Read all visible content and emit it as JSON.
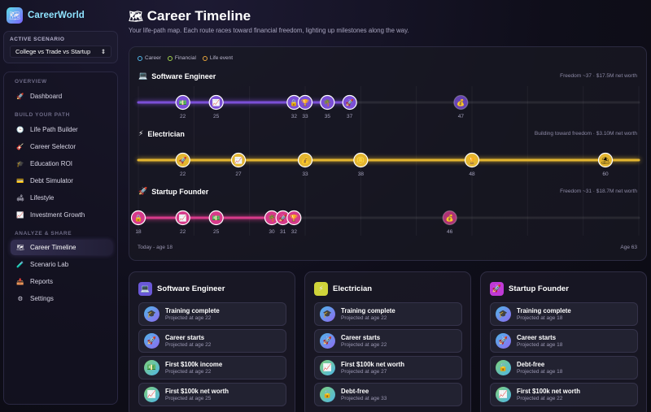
{
  "app": {
    "name": "CareerWorld",
    "logo_icon": "map-icon"
  },
  "scenario": {
    "label": "ACTIVE SCENARIO",
    "selected": "College vs Trade vs Startup"
  },
  "nav": {
    "sections": [
      {
        "label": "OVERVIEW",
        "items": [
          {
            "label": "Dashboard",
            "icon": "rocket-icon",
            "active": false
          }
        ]
      },
      {
        "label": "BUILD YOUR PATH",
        "items": [
          {
            "label": "Life Path Builder",
            "icon": "clock-icon",
            "active": false
          },
          {
            "label": "Career Selector",
            "icon": "guitar-icon",
            "active": false
          },
          {
            "label": "Education ROI",
            "icon": "graduation-cap-icon",
            "active": false
          },
          {
            "label": "Debt Simulator",
            "icon": "credit-card-icon",
            "active": false
          },
          {
            "label": "Lifestyle",
            "icon": "couch-icon",
            "active": false
          },
          {
            "label": "Investment Growth",
            "icon": "chart-icon",
            "active": false
          }
        ]
      },
      {
        "label": "ANALYZE & SHARE",
        "items": [
          {
            "label": "Career Timeline",
            "icon": "map-icon",
            "active": true
          },
          {
            "label": "Scenario Lab",
            "icon": "test-tube-icon",
            "active": false
          },
          {
            "label": "Reports",
            "icon": "inbox-icon",
            "active": false
          },
          {
            "label": "Settings",
            "icon": "gear-icon",
            "active": false
          }
        ]
      }
    ]
  },
  "header": {
    "title": "Career Timeline",
    "subtitle": "Your life-path map. Each route races toward financial freedom, lighting up milestones along the way."
  },
  "legend": [
    {
      "label": "Career",
      "color": "#4fb6e8"
    },
    {
      "label": "Financial",
      "color": "#9fd04a"
    },
    {
      "label": "Life event",
      "color": "#e8a43c"
    }
  ],
  "timeline": {
    "age_min": 18,
    "age_max": 63,
    "start_label": "Today - age 18",
    "end_label": "Age 63",
    "tracks": [
      {
        "title": "Software Engineer",
        "icon": "laptop-icon",
        "status": "Freedom ~37 · $17.5M net worth",
        "color": "#7b4fd6",
        "progress_age": 37,
        "milestones": [
          {
            "age": 22,
            "label": "22",
            "icon": "money-icon"
          },
          {
            "age": 25,
            "label": "25",
            "icon": "chart-up-icon"
          },
          {
            "age": 32,
            "label": "32",
            "icon": "lock-icon"
          },
          {
            "age": 33,
            "label": "33",
            "icon": "trophy-icon"
          },
          {
            "age": 35,
            "label": "35",
            "icon": "tree-icon"
          },
          {
            "age": 37,
            "label": "37",
            "icon": "rocket-icon"
          },
          {
            "age": 47,
            "label": "47",
            "icon": "moneybag-icon"
          }
        ]
      },
      {
        "title": "Electrician",
        "icon": "lightning-icon",
        "status": "Building toward freedom · $3.10M net worth",
        "color": "#e3b530",
        "progress_age": 63,
        "milestones": [
          {
            "age": 22,
            "label": "22",
            "icon": "rocket-icon"
          },
          {
            "age": 27,
            "label": "27",
            "icon": "chart-up-icon"
          },
          {
            "age": 33,
            "label": "33",
            "icon": "moneybag-icon"
          },
          {
            "age": 38,
            "label": "38",
            "icon": "coin-icon"
          },
          {
            "age": 48,
            "label": "48",
            "icon": "trophy-icon"
          },
          {
            "age": 60,
            "label": "60",
            "icon": "umbrella-icon"
          }
        ]
      },
      {
        "title": "Startup Founder",
        "icon": "rocket-icon",
        "status": "Freedom ~31 · $18.7M net worth",
        "color": "#d63a8a",
        "progress_age": 32,
        "milestones": [
          {
            "age": 18,
            "label": "18",
            "icon": "lock-icon"
          },
          {
            "age": 22,
            "label": "22",
            "icon": "chart-up-icon"
          },
          {
            "age": 25,
            "label": "25",
            "icon": "money-icon"
          },
          {
            "age": 30,
            "label": "30",
            "icon": "tree-icon"
          },
          {
            "age": 31,
            "label": "31",
            "icon": "rocket-icon"
          },
          {
            "age": 32,
            "label": "32",
            "icon": "trophy-icon"
          },
          {
            "age": 46,
            "label": "46",
            "icon": "moneybag-icon"
          }
        ]
      }
    ]
  },
  "cards": [
    {
      "title": "Software Engineer",
      "icon": "laptop-icon",
      "color": "#6a58d8",
      "milestones": [
        {
          "title": "Training complete",
          "sub": "Projected at age 22",
          "icon": "graduation-cap-icon"
        },
        {
          "title": "Career starts",
          "sub": "Projected at age 22",
          "icon": "rocket-icon"
        },
        {
          "title": "First $100k income",
          "sub": "Projected at age 22",
          "icon": "money-icon"
        },
        {
          "title": "First $100k net worth",
          "sub": "Projected at age 25",
          "icon": "chart-up-icon"
        }
      ]
    },
    {
      "title": "Electrician",
      "icon": "lightning-icon",
      "color": "#cfd43a",
      "milestones": [
        {
          "title": "Training complete",
          "sub": "Projected at age 22",
          "icon": "graduation-cap-icon"
        },
        {
          "title": "Career starts",
          "sub": "Projected at age 22",
          "icon": "rocket-icon"
        },
        {
          "title": "First $100k net worth",
          "sub": "Projected at age 27",
          "icon": "chart-up-icon"
        },
        {
          "title": "Debt-free",
          "sub": "Projected at age 33",
          "icon": "unlock-icon"
        }
      ]
    },
    {
      "title": "Startup Founder",
      "icon": "rocket-icon",
      "color": "#c03ad6",
      "milestones": [
        {
          "title": "Training complete",
          "sub": "Projected at age 18",
          "icon": "graduation-cap-icon"
        },
        {
          "title": "Career starts",
          "sub": "Projected at age 18",
          "icon": "rocket-icon"
        },
        {
          "title": "Debt-free",
          "sub": "Projected at age 18",
          "icon": "unlock-icon"
        },
        {
          "title": "First $100k net worth",
          "sub": "Projected at age 22",
          "icon": "chart-up-icon"
        }
      ]
    }
  ]
}
